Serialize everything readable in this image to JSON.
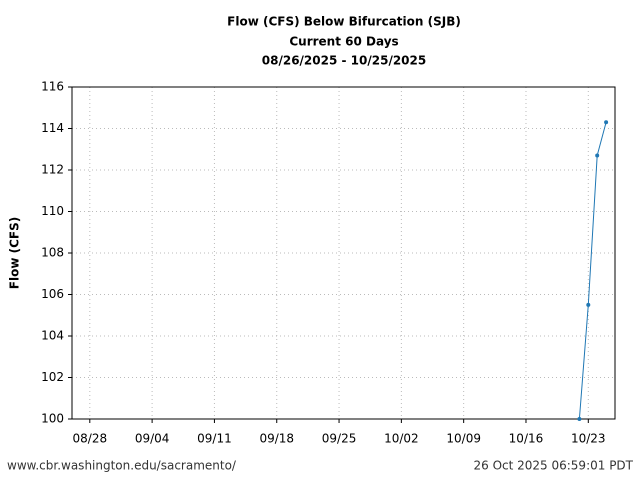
{
  "chart_data": {
    "type": "line",
    "title": "Flow (CFS) Below Bifurcation (SJB)",
    "subtitle": "Current 60 Days",
    "period": "08/26/2025 - 10/25/2025",
    "ylabel": "Flow (CFS)",
    "x": [
      "10/22",
      "10/23",
      "10/24",
      "10/25"
    ],
    "series": [
      {
        "name": "Flow (CFS)",
        "color": "#1f77b4",
        "values": [
          100,
          105.5,
          112.7,
          114.3
        ]
      }
    ],
    "xlim": [
      "08/26",
      "10/26"
    ],
    "xticks": [
      "08/28",
      "09/04",
      "09/11",
      "09/18",
      "09/25",
      "10/02",
      "10/09",
      "10/16",
      "10/23"
    ],
    "ylim": [
      100,
      116
    ],
    "yticks": [
      100,
      102,
      104,
      106,
      108,
      110,
      112,
      114,
      116
    ],
    "grid": true,
    "footer_left": "www.cbr.washington.edu/sacramento/",
    "footer_right": "26 Oct 2025 06:59:01 PDT"
  }
}
